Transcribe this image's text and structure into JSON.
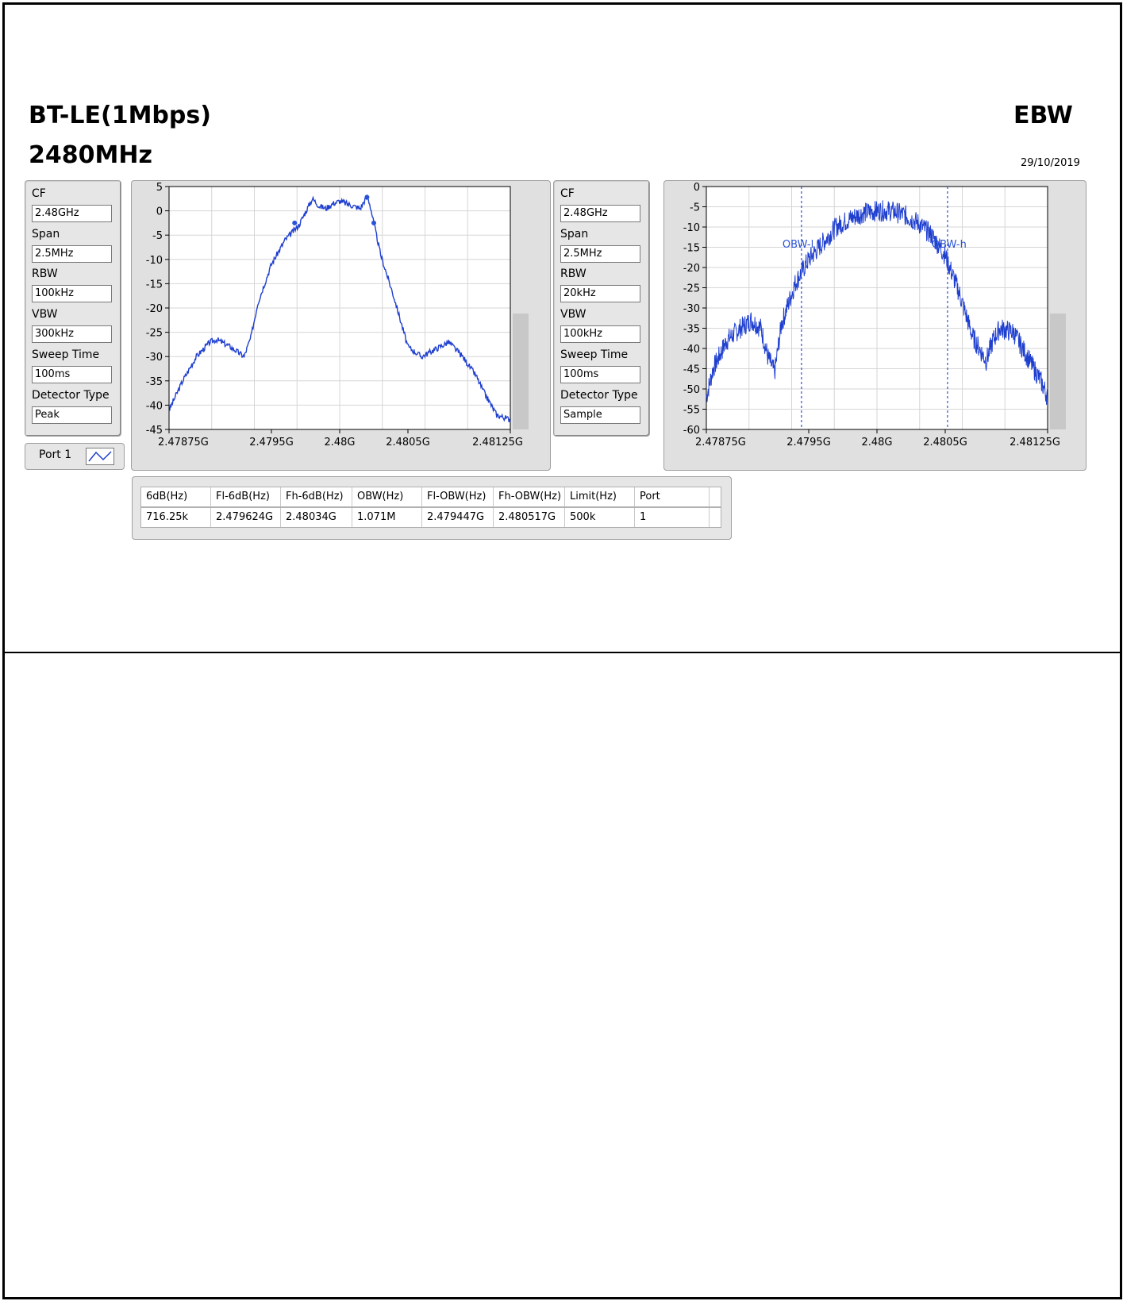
{
  "header": {
    "mode": "BT-LE(1Mbps)",
    "freq": "2480MHz",
    "test": "EBW",
    "date": "29/10/2019"
  },
  "left_settings": [
    {
      "label": "CF",
      "value": "2.48GHz"
    },
    {
      "label": "Span",
      "value": "2.5MHz"
    },
    {
      "label": "RBW",
      "value": "100kHz"
    },
    {
      "label": "VBW",
      "value": "300kHz"
    },
    {
      "label": "Sweep Time",
      "value": "100ms"
    },
    {
      "label": "Detector Type",
      "value": "Peak"
    }
  ],
  "right_settings": [
    {
      "label": "CF",
      "value": "2.48GHz"
    },
    {
      "label": "Span",
      "value": "2.5MHz"
    },
    {
      "label": "RBW",
      "value": "20kHz"
    },
    {
      "label": "VBW",
      "value": "100kHz"
    },
    {
      "label": "Sweep Time",
      "value": "100ms"
    },
    {
      "label": "Detector Type",
      "value": "Sample"
    }
  ],
  "port_legend": {
    "label": "Port 1"
  },
  "colors": {
    "trace": "#1f3fcf",
    "marker": "#2a52d6"
  },
  "results_table": {
    "headers": [
      "6dB(Hz)",
      "Fl-6dB(Hz)",
      "Fh-6dB(Hz)",
      "OBW(Hz)",
      "Fl-OBW(Hz)",
      "Fh-OBW(Hz)",
      "Limit(Hz)",
      "Port"
    ],
    "row": [
      "716.25k",
      "2.479624G",
      "2.48034G",
      "1.071M",
      "2.479447G",
      "2.480517G",
      "500k",
      "1"
    ]
  },
  "chart_data": [
    {
      "type": "line",
      "xlabel": "",
      "ylabel": "",
      "xlim": [
        2.47875,
        2.48125
      ],
      "ylim": [
        -45,
        5
      ],
      "x_tick_labels": [
        "2.47875G",
        "2.4795G",
        "2.48G",
        "2.4805G",
        "2.48125G"
      ],
      "x_ticks": [
        2.47875,
        2.4795,
        2.48,
        2.4805,
        2.48125
      ],
      "y_ticks": [
        5,
        0,
        -5,
        -10,
        -15,
        -20,
        -25,
        -30,
        -35,
        -40,
        -45
      ],
      "grid": true,
      "series": [
        {
          "x": [
            2.47875,
            2.47885,
            2.47895,
            2.47905,
            2.4791,
            2.4792,
            2.4793,
            2.47935,
            2.4794,
            2.4795,
            2.4796,
            2.4797,
            2.4798,
            2.47985,
            2.4799,
            2.47995,
            2.48,
            2.48005,
            2.48015,
            2.4802,
            2.48022,
            2.48025,
            2.4803,
            2.4804,
            2.4805,
            2.4806,
            2.4807,
            2.4808,
            2.4809,
            2.481,
            2.48105,
            2.48115,
            2.48125
          ],
          "y": [
            -41,
            -35,
            -30,
            -27,
            -26.5,
            -28,
            -30,
            -26,
            -19,
            -11,
            -6,
            -3,
            2.5,
            1,
            0.5,
            1.5,
            2,
            1.5,
            0.5,
            3,
            1.5,
            -2.5,
            -9,
            -18,
            -28,
            -30,
            -28.5,
            -27,
            -30,
            -34,
            -37,
            -42,
            -43
          ]
        }
      ],
      "markers": [
        {
          "x": 2.47967,
          "y": -2.5
        },
        {
          "x": 2.4802,
          "y": 2.8
        },
        {
          "x": 2.48025,
          "y": -2.5
        }
      ]
    },
    {
      "type": "line",
      "xlabel": "",
      "ylabel": "",
      "xlim": [
        2.47875,
        2.48125
      ],
      "ylim": [
        -60,
        0
      ],
      "x_tick_labels": [
        "2.47875G",
        "2.4795G",
        "2.48G",
        "2.4805G",
        "2.48125G"
      ],
      "x_ticks": [
        2.47875,
        2.4795,
        2.48,
        2.4805,
        2.48125
      ],
      "y_ticks": [
        0,
        -5,
        -10,
        -15,
        -20,
        -25,
        -30,
        -35,
        -40,
        -45,
        -50,
        -55,
        -60
      ],
      "grid": true,
      "series": [
        {
          "x": [
            2.47875,
            2.4788,
            2.4789,
            2.479,
            2.47908,
            2.47915,
            2.4792,
            2.47925,
            2.4793,
            2.4794,
            2.4795,
            2.4796,
            2.4797,
            2.4798,
            2.4799,
            2.48,
            2.4801,
            2.4802,
            2.4803,
            2.4804,
            2.4805,
            2.4806,
            2.4807,
            2.4808,
            2.48085,
            2.4809,
            2.481,
            2.4811,
            2.4812,
            2.48125
          ],
          "y": [
            -52,
            -45,
            -38,
            -35,
            -33,
            -35,
            -42,
            -46,
            -34,
            -24,
            -18,
            -14,
            -10,
            -8,
            -6.5,
            -6,
            -6,
            -7,
            -9,
            -12,
            -17,
            -26,
            -37,
            -43,
            -38,
            -35,
            -36,
            -42,
            -48,
            -52
          ]
        }
      ],
      "cursors": [
        {
          "label": "OBW-l",
          "x": 2.479447
        },
        {
          "label": "OBW-h",
          "x": 2.480517
        }
      ]
    }
  ]
}
